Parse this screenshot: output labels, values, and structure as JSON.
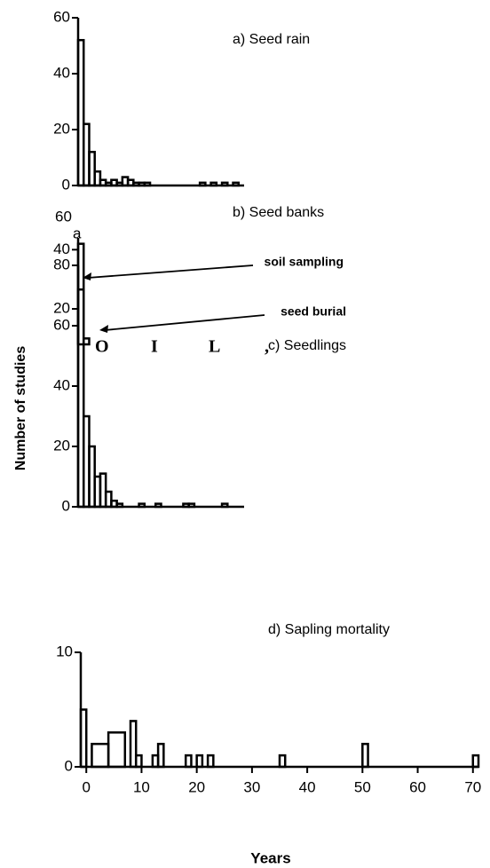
{
  "chart_data": [
    {
      "type": "histogram",
      "title": "a)  Seed rain",
      "bins": [
        -1,
        0,
        1,
        2,
        3,
        4,
        5,
        6,
        7,
        8,
        9,
        10,
        11,
        12,
        13,
        14,
        15,
        16,
        17,
        18,
        19,
        20,
        21,
        22,
        23,
        24,
        25,
        26,
        27,
        28
      ],
      "values": [
        52,
        22,
        12,
        5,
        2,
        1,
        2,
        1,
        3,
        2,
        1,
        1,
        1,
        0,
        0,
        0,
        0,
        0,
        0,
        0,
        0,
        0,
        1,
        0,
        1,
        0,
        1,
        0,
        1
      ],
      "color": "#000000",
      "xlim": [
        -1,
        29
      ],
      "ylim": [
        0,
        60
      ],
      "yticks": [
        0,
        20,
        40,
        60
      ]
    },
    {
      "type": "histogram",
      "title": "b)  Seed banks",
      "bins": [
        -1,
        0,
        1,
        2
      ],
      "values": [
        42,
        10,
        8
      ],
      "color": "#000000",
      "xlim": [
        -1,
        29
      ],
      "ylim": [
        8,
        44
      ],
      "yticks": [
        20,
        40
      ],
      "annotations": [
        "soil sampling",
        "seed burial"
      ]
    },
    {
      "type": "histogram",
      "title": "c)   Seedlings",
      "bins": [
        -1,
        0,
        1,
        2,
        3,
        4,
        5,
        6,
        7,
        8,
        9,
        10,
        11,
        12,
        13,
        14,
        15,
        16,
        17,
        18,
        19,
        20,
        21,
        22,
        23,
        24,
        25,
        26,
        27,
        28
      ],
      "values": [
        72,
        30,
        20,
        10,
        11,
        5,
        2,
        1,
        0,
        0,
        0,
        1,
        0,
        0,
        1,
        0,
        0,
        0,
        0,
        1,
        1,
        0,
        0,
        0,
        0,
        0,
        1,
        0,
        0
      ],
      "color": "#000000",
      "xlim": [
        -1,
        29
      ],
      "ylim": [
        0,
        80
      ],
      "yticks": [
        0,
        20,
        40,
        60,
        80
      ]
    },
    {
      "type": "histogram",
      "title": "d)   Sapling   mortality",
      "bins": [
        -1,
        0,
        1,
        4,
        7,
        8,
        9,
        10,
        12,
        13,
        14,
        18,
        19,
        20,
        21,
        22,
        23,
        35,
        36,
        50,
        51,
        70,
        71
      ],
      "values": [
        5,
        0,
        2,
        3,
        0,
        4,
        1,
        0,
        1,
        2,
        0,
        1,
        0,
        1,
        0,
        1,
        0,
        1,
        0,
        2,
        0,
        1
      ],
      "color": "#000000",
      "xlim": [
        -1,
        71
      ],
      "ylim": [
        0,
        10
      ],
      "yticks": [
        0,
        10
      ],
      "xticks": [
        0,
        10,
        20,
        30,
        40,
        50,
        60,
        70
      ],
      "xlabel": "Years"
    }
  ],
  "ylabel": "Number of studies",
  "scan_text": [
    "60",
    "a",
    "O",
    "I",
    "L",
    ","
  ]
}
